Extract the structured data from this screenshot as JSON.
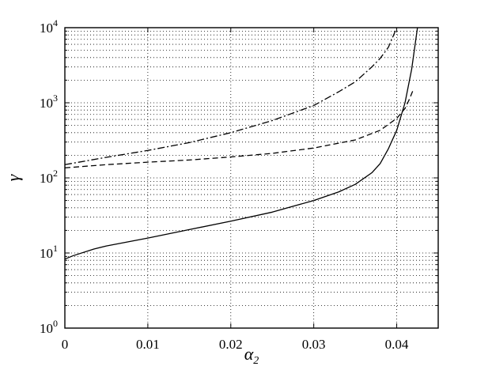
{
  "chart_data": {
    "type": "line",
    "xlabel": "α",
    "xlabel_sub": "2",
    "ylabel": "γ",
    "xlim": [
      0,
      0.045
    ],
    "ylim": [
      1,
      10000
    ],
    "yscale": "log",
    "grid": true,
    "x_ticks": [
      {
        "value": 0,
        "label": "0"
      },
      {
        "value": 0.01,
        "label": "0.01"
      },
      {
        "value": 0.02,
        "label": "0.02"
      },
      {
        "value": 0.03,
        "label": "0.03"
      },
      {
        "value": 0.04,
        "label": "0.04"
      }
    ],
    "y_ticks": [
      {
        "value": 1,
        "base": "10",
        "exp": "0"
      },
      {
        "value": 10,
        "base": "10",
        "exp": "1"
      },
      {
        "value": 100,
        "base": "10",
        "exp": "2"
      },
      {
        "value": 1000,
        "base": "10",
        "exp": "3"
      },
      {
        "value": 10000,
        "base": "10",
        "exp": "4"
      }
    ],
    "series": [
      {
        "style": "solid",
        "points": [
          [
            0,
            8.3
          ],
          [
            0.001,
            9.2
          ],
          [
            0.0035,
            11.3
          ],
          [
            0.005,
            12.4
          ],
          [
            0.01,
            15.8
          ],
          [
            0.015,
            20.5
          ],
          [
            0.02,
            26.5
          ],
          [
            0.025,
            35
          ],
          [
            0.03,
            50
          ],
          [
            0.033,
            65
          ],
          [
            0.035,
            82
          ],
          [
            0.037,
            117
          ],
          [
            0.038,
            155
          ],
          [
            0.039,
            245
          ],
          [
            0.04,
            430
          ],
          [
            0.041,
            1000
          ],
          [
            0.0418,
            2800
          ],
          [
            0.0425,
            10000
          ]
        ]
      },
      {
        "style": "dashed",
        "points": [
          [
            0,
            136
          ],
          [
            0.005,
            150
          ],
          [
            0.01,
            162
          ],
          [
            0.015,
            173
          ],
          [
            0.02,
            190
          ],
          [
            0.025,
            212
          ],
          [
            0.03,
            250
          ],
          [
            0.035,
            320
          ],
          [
            0.038,
            430
          ],
          [
            0.04,
            620
          ],
          [
            0.041,
            840
          ],
          [
            0.0415,
            1100
          ],
          [
            0.042,
            1500
          ]
        ]
      },
      {
        "style": "dashdot",
        "points": [
          [
            0,
            150
          ],
          [
            0.005,
            188
          ],
          [
            0.01,
            232
          ],
          [
            0.015,
            295
          ],
          [
            0.02,
            400
          ],
          [
            0.025,
            580
          ],
          [
            0.03,
            920
          ],
          [
            0.033,
            1400
          ],
          [
            0.035,
            1900
          ],
          [
            0.037,
            3000
          ],
          [
            0.038,
            3900
          ],
          [
            0.039,
            5500
          ],
          [
            0.04,
            10000
          ]
        ]
      }
    ]
  }
}
